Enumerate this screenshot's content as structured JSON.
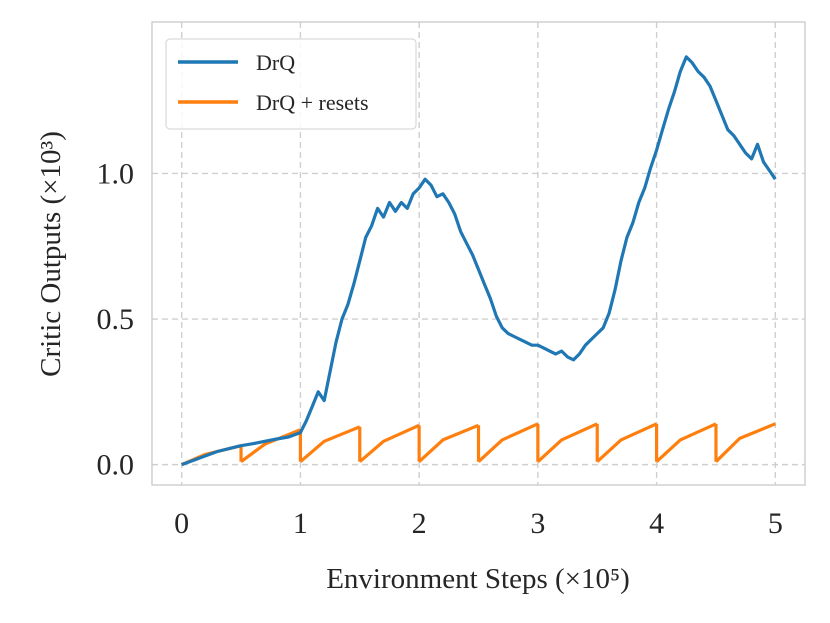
{
  "chart_data": {
    "type": "line",
    "xlabel": "Environment Steps (×10⁵)",
    "ylabel": "Critic Outputs (×10³)",
    "xlim": [
      -0.25,
      5.25
    ],
    "ylim": [
      -0.07,
      1.52
    ],
    "xticks": [
      0,
      1,
      2,
      3,
      4,
      5
    ],
    "xtick_labels": [
      "0",
      "1",
      "2",
      "3",
      "4",
      "5"
    ],
    "yticks": [
      0.0,
      0.5,
      1.0
    ],
    "ytick_labels": [
      "0.0",
      "0.5",
      "1.0"
    ],
    "grid": true,
    "legend_position": "top-left",
    "series": [
      {
        "name": "DrQ",
        "color": "#1f77b4",
        "x": [
          0,
          0.1,
          0.2,
          0.3,
          0.4,
          0.5,
          0.6,
          0.7,
          0.8,
          0.9,
          1.0,
          1.05,
          1.1,
          1.15,
          1.2,
          1.25,
          1.3,
          1.35,
          1.4,
          1.45,
          1.5,
          1.55,
          1.6,
          1.65,
          1.7,
          1.75,
          1.8,
          1.85,
          1.9,
          1.95,
          2.0,
          2.05,
          2.1,
          2.15,
          2.2,
          2.25,
          2.3,
          2.35,
          2.4,
          2.45,
          2.5,
          2.55,
          2.6,
          2.65,
          2.7,
          2.75,
          2.8,
          2.85,
          2.9,
          2.95,
          3.0,
          3.05,
          3.1,
          3.15,
          3.2,
          3.25,
          3.3,
          3.35,
          3.4,
          3.45,
          3.5,
          3.55,
          3.6,
          3.65,
          3.7,
          3.75,
          3.8,
          3.85,
          3.9,
          3.95,
          4.0,
          4.05,
          4.1,
          4.15,
          4.2,
          4.25,
          4.3,
          4.35,
          4.4,
          4.45,
          4.5,
          4.55,
          4.6,
          4.65,
          4.7,
          4.75,
          4.8,
          4.85,
          4.9,
          4.95,
          5.0
        ],
        "y": [
          0.0,
          0.015,
          0.03,
          0.045,
          0.055,
          0.065,
          0.072,
          0.08,
          0.088,
          0.095,
          0.11,
          0.15,
          0.2,
          0.25,
          0.22,
          0.32,
          0.42,
          0.5,
          0.55,
          0.62,
          0.7,
          0.78,
          0.82,
          0.88,
          0.85,
          0.9,
          0.87,
          0.9,
          0.88,
          0.93,
          0.95,
          0.98,
          0.96,
          0.92,
          0.93,
          0.9,
          0.86,
          0.8,
          0.76,
          0.72,
          0.67,
          0.62,
          0.57,
          0.51,
          0.47,
          0.45,
          0.44,
          0.43,
          0.42,
          0.41,
          0.41,
          0.4,
          0.39,
          0.38,
          0.39,
          0.37,
          0.36,
          0.38,
          0.41,
          0.43,
          0.45,
          0.47,
          0.52,
          0.6,
          0.7,
          0.78,
          0.83,
          0.9,
          0.95,
          1.02,
          1.08,
          1.15,
          1.22,
          1.28,
          1.35,
          1.4,
          1.38,
          1.35,
          1.33,
          1.3,
          1.25,
          1.2,
          1.15,
          1.13,
          1.1,
          1.07,
          1.05,
          1.1,
          1.04,
          1.01,
          0.98
        ]
      },
      {
        "name": "DrQ + resets",
        "color": "#ff7f0e",
        "segments": [
          {
            "x": [
              0,
              0.2,
              0.5
            ],
            "y": [
              0.0,
              0.035,
              0.065
            ]
          },
          {
            "x": [
              0.5,
              0.7,
              1.0
            ],
            "y": [
              0.01,
              0.07,
              0.12
            ]
          },
          {
            "x": [
              1.0,
              1.2,
              1.5
            ],
            "y": [
              0.01,
              0.08,
              0.13
            ]
          },
          {
            "x": [
              1.5,
              1.7,
              2.0
            ],
            "y": [
              0.01,
              0.08,
              0.135
            ]
          },
          {
            "x": [
              2.0,
              2.2,
              2.5
            ],
            "y": [
              0.01,
              0.085,
              0.135
            ]
          },
          {
            "x": [
              2.5,
              2.7,
              3.0
            ],
            "y": [
              0.01,
              0.085,
              0.14
            ]
          },
          {
            "x": [
              3.0,
              3.2,
              3.5
            ],
            "y": [
              0.01,
              0.085,
              0.14
            ]
          },
          {
            "x": [
              3.5,
              3.7,
              4.0
            ],
            "y": [
              0.01,
              0.085,
              0.14
            ]
          },
          {
            "x": [
              4.0,
              4.2,
              4.5
            ],
            "y": [
              0.01,
              0.085,
              0.14
            ]
          },
          {
            "x": [
              4.5,
              4.7,
              5.0
            ],
            "y": [
              0.01,
              0.09,
              0.14
            ]
          }
        ]
      }
    ]
  }
}
